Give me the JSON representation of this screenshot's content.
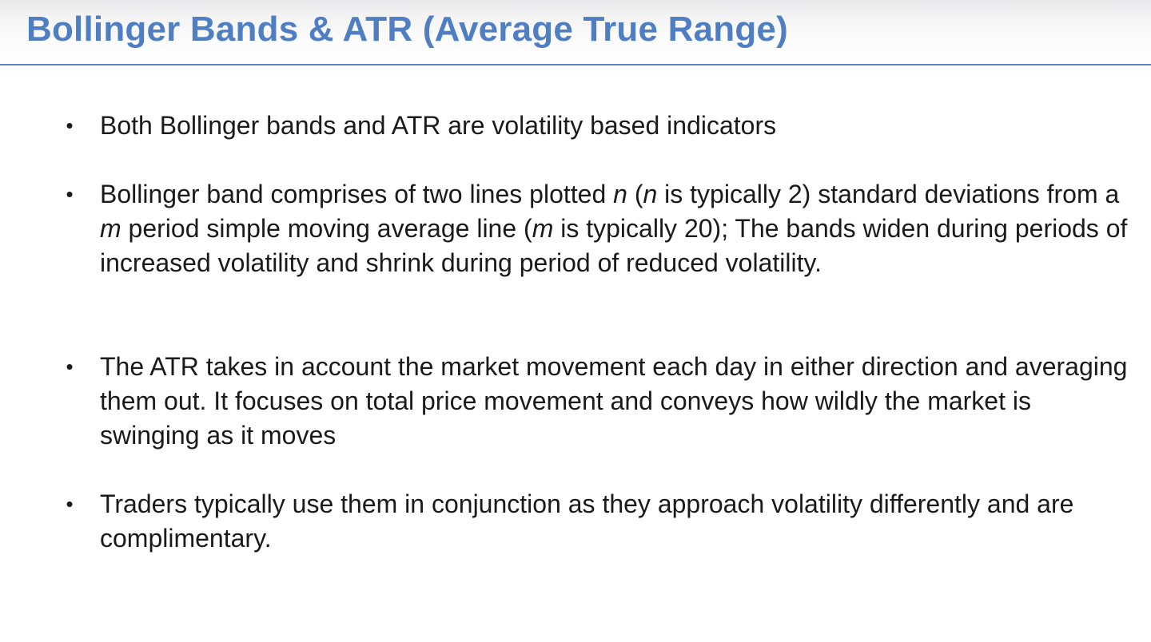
{
  "slide": {
    "title": "Bollinger Bands & ATR (Average True Range)",
    "bullet_symbol": "•",
    "bullets": [
      {
        "text": "Both Bollinger bands and ATR are volatility based indicators"
      },
      {
        "parts": [
          "Bollinger band comprises of two lines plotted ",
          "n",
          " (",
          "n",
          " is typically 2) standard deviations from a ",
          "m",
          " period simple moving average line (",
          "m",
          " is typically 20); The bands widen during periods of increased volatility and shrink during period of reduced volatility."
        ]
      },
      {
        "text": "The ATR takes in account the market movement each day in either direction and averaging them out. It focuses on total price movement and conveys how wildly the market is swinging as it moves"
      },
      {
        "text": "Traders typically use them in conjunction as they approach volatility differently and are complimentary."
      }
    ]
  }
}
